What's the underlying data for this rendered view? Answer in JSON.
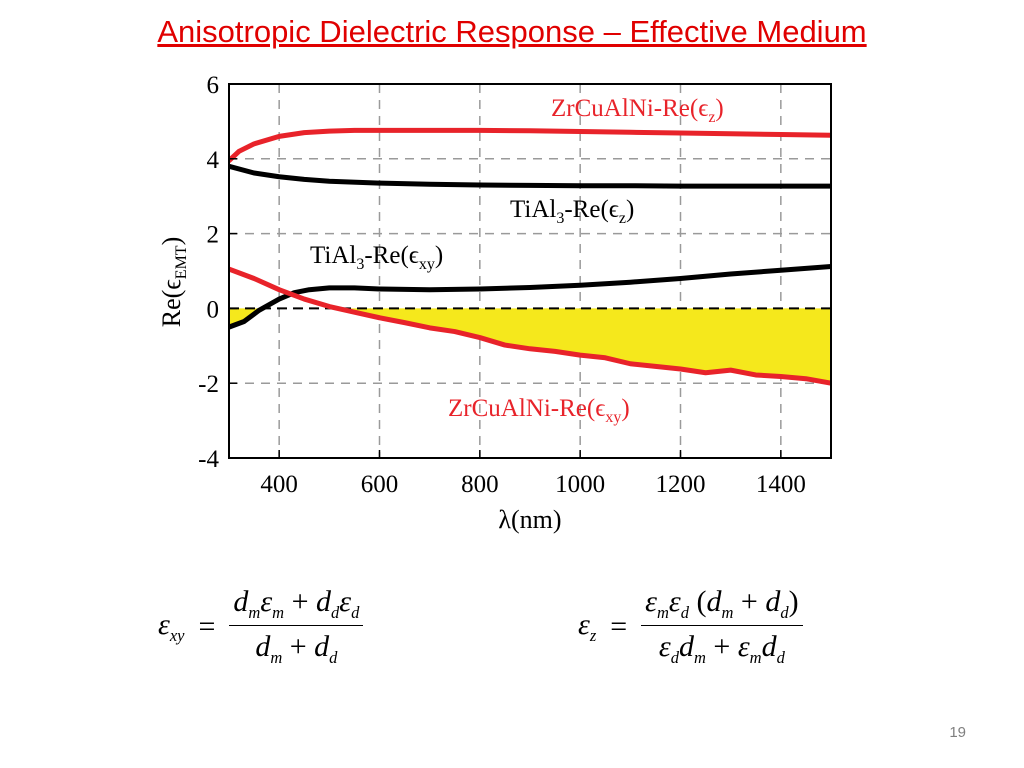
{
  "slide": {
    "title": "Anisotropic Dielectric Response – Effective Medium",
    "page_number": "19"
  },
  "chart_data": {
    "type": "line",
    "xlabel": "λ(nm)",
    "ylabel": "Re(ϵ",
    "ylabel_sub": "EMT",
    "ylabel_tail": ")",
    "xlim": [
      300,
      1500
    ],
    "ylim": [
      -4,
      6
    ],
    "xticks": [
      400,
      600,
      800,
      1000,
      1200,
      1400
    ],
    "yticks": [
      6,
      4,
      2,
      0,
      -2,
      -4
    ],
    "grid": "dashed",
    "zero_line": "dashed",
    "fill_negative_under": "ZrCuAlNi-Re(ϵxy)",
    "fill_color": "#f5e81c",
    "series": [
      {
        "name": "ZrCuAlNi-Re(ϵz)",
        "label_main": "ZrCuAlNi-Re(ϵ",
        "label_sub": "z",
        "label_tail": ")",
        "color": "#e8232a",
        "x": [
          300,
          320,
          350,
          400,
          450,
          500,
          550,
          600,
          700,
          800,
          900,
          1000,
          1100,
          1200,
          1300,
          1400,
          1500
        ],
        "y": [
          3.95,
          4.2,
          4.4,
          4.6,
          4.7,
          4.74,
          4.76,
          4.76,
          4.76,
          4.76,
          4.75,
          4.73,
          4.71,
          4.69,
          4.67,
          4.65,
          4.63
        ]
      },
      {
        "name": "TiAl3-Re(ϵz)",
        "label_main": "TiAl",
        "label_sub1": "3",
        "label_mid": "-Re(ϵ",
        "label_sub": "z",
        "label_tail": ")",
        "color": "#000000",
        "x": [
          300,
          350,
          400,
          450,
          500,
          600,
          700,
          800,
          900,
          1000,
          1100,
          1200,
          1300,
          1400,
          1500
        ],
        "y": [
          3.8,
          3.62,
          3.52,
          3.45,
          3.4,
          3.35,
          3.32,
          3.3,
          3.29,
          3.28,
          3.28,
          3.27,
          3.27,
          3.27,
          3.27
        ]
      },
      {
        "name": "TiAl3-Re(ϵxy)",
        "label_main": "TiAl",
        "label_sub1": "3",
        "label_mid": "-Re(ϵ",
        "label_sub": "xy",
        "label_tail": ")",
        "color": "#000000",
        "x": [
          300,
          330,
          360,
          400,
          430,
          460,
          500,
          550,
          600,
          700,
          800,
          900,
          1000,
          1100,
          1200,
          1300,
          1400,
          1500
        ],
        "y": [
          -0.5,
          -0.35,
          -0.05,
          0.25,
          0.42,
          0.5,
          0.55,
          0.55,
          0.52,
          0.5,
          0.52,
          0.56,
          0.62,
          0.7,
          0.8,
          0.92,
          1.02,
          1.12
        ]
      },
      {
        "name": "ZrCuAlNi-Re(ϵxy)",
        "label_main": "ZrCuAlNi-Re(ϵ",
        "label_sub": "xy",
        "label_tail": ")",
        "color": "#e8232a",
        "x": [
          300,
          350,
          400,
          450,
          500,
          550,
          600,
          650,
          700,
          750,
          800,
          850,
          900,
          950,
          1000,
          1050,
          1100,
          1150,
          1200,
          1250,
          1300,
          1350,
          1400,
          1450,
          1500
        ],
        "y": [
          1.05,
          0.8,
          0.5,
          0.25,
          0.05,
          -0.1,
          -0.25,
          -0.38,
          -0.52,
          -0.62,
          -0.78,
          -0.98,
          -1.08,
          -1.15,
          -1.25,
          -1.32,
          -1.48,
          -1.55,
          -1.62,
          -1.72,
          -1.65,
          -1.78,
          -1.82,
          -1.88,
          -2.0
        ]
      }
    ]
  },
  "equations": {
    "eq1": {
      "lhs": "ε",
      "lhs_sub": "xy",
      "eq": "=",
      "num": "d",
      "num_sub1": "m",
      "num_e1": "ε",
      "num_sub2": "m",
      "num_plus": " + ",
      "num_d2": "d",
      "num_sub3": "d",
      "num_e2": "ε",
      "num_sub4": "d",
      "den": "d",
      "den_sub1": "m",
      "den_plus": " + ",
      "den_d2": "d",
      "den_sub2": "d"
    },
    "eq2": {
      "lhs": "ε",
      "lhs_sub": "z",
      "eq": "=",
      "num_e1": "ε",
      "num_sub1": "m",
      "num_e2": "ε",
      "num_sub2": "d",
      "num_paren_open": " (",
      "num_d1": "d",
      "num_sub3": "m",
      "num_plus": " + ",
      "num_d2": "d",
      "num_sub4": "d",
      "num_paren_close": ")",
      "den_e1": "ε",
      "den_sub1": "d",
      "den_d1": "d",
      "den_sub2": "m",
      "den_plus": " + ",
      "den_e2": "ε",
      "den_sub3": "m",
      "den_d2": "d",
      "den_sub4": "d"
    }
  }
}
